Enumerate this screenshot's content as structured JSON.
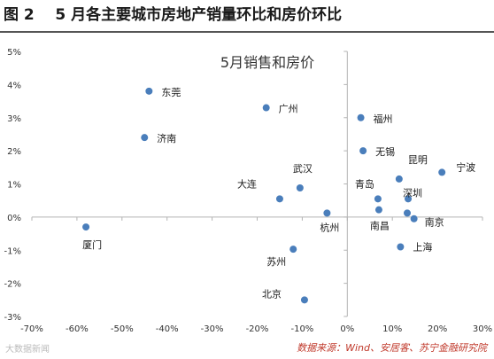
{
  "figure_title": "图 2    5 月各主要城市房地产销量环比和房价环比",
  "source_note": "数据来源：Wind、安居客、苏宁金融研究院",
  "watermark": "大数据新闻",
  "chart_data": {
    "type": "scatter",
    "title": "5月销售和房价",
    "xlabel": "",
    "ylabel": "",
    "xlim": [
      -0.7,
      0.3
    ],
    "ylim": [
      -0.03,
      0.05
    ],
    "x_ticks": [
      "-70%",
      "-60%",
      "-50%",
      "-40%",
      "-30%",
      "-20%",
      "-10%",
      "0%",
      "10%",
      "20%",
      "30%"
    ],
    "y_ticks": [
      "-3%",
      "-2%",
      "-1%",
      "0%",
      "1%",
      "2%",
      "3%",
      "4%",
      "5%"
    ],
    "grid": false,
    "marker_color": "#4a7ebb",
    "points": [
      {
        "label": "东莞",
        "x": -0.44,
        "y": 0.038
      },
      {
        "label": "济南",
        "x": -0.45,
        "y": 0.024
      },
      {
        "label": "广州",
        "x": -0.18,
        "y": 0.033
      },
      {
        "label": "福州",
        "x": 0.03,
        "y": 0.03
      },
      {
        "label": "无锡",
        "x": 0.035,
        "y": 0.02
      },
      {
        "label": "昆明",
        "x": 0.115,
        "y": 0.0115
      },
      {
        "label": "宁波",
        "x": 0.21,
        "y": 0.0135
      },
      {
        "label": "武汉",
        "x": -0.105,
        "y": 0.0088
      },
      {
        "label": "大连",
        "x": -0.15,
        "y": 0.0055
      },
      {
        "label": "青岛",
        "x": 0.068,
        "y": 0.0055
      },
      {
        "label": "深圳",
        "x": 0.135,
        "y": 0.0055
      },
      {
        "label": "南京",
        "x": 0.148,
        "y": -0.0005
      },
      {
        "label": "南昌",
        "x": 0.07,
        "y": 0.0022
      },
      {
        "label": "",
        "x": 0.133,
        "y": 0.0012
      },
      {
        "label": "杭州",
        "x": -0.045,
        "y": 0.0012
      },
      {
        "label": "厦门",
        "x": -0.58,
        "y": -0.003
      },
      {
        "label": "上海",
        "x": 0.118,
        "y": -0.009
      },
      {
        "label": "苏州",
        "x": -0.12,
        "y": -0.0097
      },
      {
        "label": "北京",
        "x": -0.095,
        "y": -0.025
      }
    ]
  }
}
